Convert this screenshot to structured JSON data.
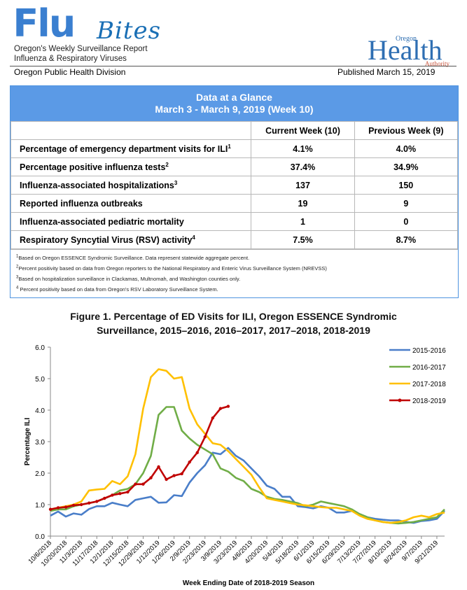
{
  "header": {
    "logo_flu": "Flu",
    "logo_bites": "Bites",
    "subtitle_line1": "Oregon's Weekly Surveillance Report",
    "subtitle_line2": "Influenza & Respiratory Viruses",
    "oha_oregon": "Oregon",
    "oha_health": "Health",
    "oha_authority": "Authority",
    "division": "Oregon Public Health Division",
    "published": "Published March 15, 2019"
  },
  "glance": {
    "title": "Data at a Glance",
    "subtitle": "March 3 - March 9, 2019 (Week 10)",
    "col_current": "Current Week (10)",
    "col_previous": "Previous Week (9)",
    "rows": [
      {
        "label": "Percentage of emergency department visits for ILI",
        "sup": "1",
        "current": "4.1%",
        "previous": "4.0%"
      },
      {
        "label": "Percentage positive influenza tests",
        "sup": "2",
        "current": "37.4%",
        "previous": "34.9%"
      },
      {
        "label": "Influenza-associated hospitalizations",
        "sup": "3",
        "current": "137",
        "previous": "150"
      },
      {
        "label": "Reported influenza outbreaks",
        "sup": "",
        "current": "19",
        "previous": "9"
      },
      {
        "label": "Influenza-associated pediatric mortality",
        "sup": "",
        "current": "1",
        "previous": "0"
      },
      {
        "label": "Respiratory Syncytial Virus (RSV) activity",
        "sup": "4",
        "current": "7.5%",
        "previous": "8.7%"
      }
    ],
    "notes": [
      {
        "sup": "1",
        "text": "Based on Oregon ESSENCE Syndromic Surveillance. Data represent statewide aggregate percent."
      },
      {
        "sup": "2",
        "text": "Percent positivity based on data from Oregon reporters to the National Respiratory and Enteric Virus Surveillance System (NREVSS)"
      },
      {
        "sup": "3",
        "text": "Based on hospitalization surveillance in Clackamas, Multnomah, and Washington counties only."
      },
      {
        "sup": "4",
        "text": " Percent positivity based on data from Oregon's RSV Laboratory Surveillance System."
      }
    ]
  },
  "chart_data": {
    "type": "line",
    "title_line1": "Figure 1. Percentage of ED Visits for ILI, Oregon ESSENCE Syndromic",
    "title_line2": "Surveillance, 2015–2016, 2016–2017, 2017–2018, 2018-2019",
    "xlabel": "Week Ending Date of 2018-2019 Season",
    "ylabel": "Percentage ILI",
    "ylim": [
      0,
      6
    ],
    "yticks": [
      "0.0",
      "1.0",
      "2.0",
      "3.0",
      "4.0",
      "5.0",
      "6.0"
    ],
    "weeks": 52,
    "xtick_labels": [
      "10/6/2018",
      "10/20/2018",
      "11/3/2018",
      "11/17/2018",
      "12/1/2018",
      "12/15/2018",
      "12/29/2018",
      "1/12/2019",
      "1/26/2019",
      "2/9/2019",
      "2/23/2019",
      "3/9/2019",
      "3/23/2019",
      "4/6/2019",
      "4/20/2019",
      "5/4/2019",
      "5/18/2019",
      "6/1/2019",
      "6/15/2019",
      "6/29/2019",
      "7/13/2019",
      "7/27/2019",
      "8/10/2019",
      "8/24/2019",
      "9/7/2019",
      "9/21/2019"
    ],
    "legend_position": "top-right",
    "series": [
      {
        "name": "2015-2016",
        "color": "#4a7ec9",
        "markers": false,
        "values": [
          0.65,
          0.78,
          0.62,
          0.72,
          0.68,
          0.86,
          0.95,
          0.95,
          1.06,
          1.0,
          0.95,
          1.15,
          1.2,
          1.25,
          1.06,
          1.07,
          1.3,
          1.27,
          1.7,
          2.0,
          2.25,
          2.65,
          2.6,
          2.8,
          2.55,
          2.4,
          2.15,
          1.9,
          1.6,
          1.5,
          1.25,
          1.25,
          0.95,
          0.92,
          0.88,
          0.95,
          0.9,
          0.75,
          0.75,
          0.8,
          0.7,
          0.6,
          0.55,
          0.52,
          0.5,
          0.5,
          0.45,
          0.42,
          0.48,
          0.5,
          0.55,
          0.8
        ]
      },
      {
        "name": "2016-2017",
        "color": "#70ad47",
        "markers": false,
        "values": [
          0.8,
          0.85,
          0.85,
          0.95,
          1.0,
          1.05,
          1.1,
          1.2,
          1.3,
          1.45,
          1.5,
          1.65,
          2.0,
          2.55,
          3.85,
          4.1,
          4.1,
          3.35,
          3.1,
          2.9,
          2.75,
          2.6,
          2.15,
          2.05,
          1.85,
          1.75,
          1.5,
          1.4,
          1.25,
          1.18,
          1.15,
          1.1,
          1.05,
          0.95,
          1.0,
          1.1,
          1.05,
          1.0,
          0.95,
          0.85,
          0.7,
          0.6,
          0.5,
          0.45,
          0.42,
          0.4,
          0.42,
          0.45,
          0.5,
          0.55,
          0.6,
          0.85
        ]
      },
      {
        "name": "2017-2018",
        "color": "#ffc000",
        "markers": false,
        "values": [
          0.85,
          0.9,
          0.95,
          1.0,
          1.1,
          1.45,
          1.48,
          1.5,
          1.75,
          1.65,
          1.9,
          2.6,
          4.05,
          5.05,
          5.3,
          5.25,
          5.0,
          5.05,
          4.05,
          3.55,
          3.25,
          2.95,
          2.9,
          2.7,
          2.45,
          2.2,
          1.95,
          1.55,
          1.2,
          1.15,
          1.1,
          1.05,
          1.0,
          0.98,
          0.95,
          0.92,
          0.9,
          0.9,
          0.85,
          0.8,
          0.65,
          0.55,
          0.5,
          0.45,
          0.42,
          0.45,
          0.5,
          0.6,
          0.65,
          0.6,
          0.7,
          0.75
        ]
      },
      {
        "name": "2018-2019",
        "color": "#c00000",
        "markers": true,
        "values": [
          0.85,
          0.9,
          0.92,
          0.98,
          1.0,
          1.05,
          1.1,
          1.2,
          1.3,
          1.35,
          1.4,
          1.65,
          1.65,
          1.85,
          2.2,
          1.8,
          1.92,
          1.98,
          2.35,
          2.65,
          3.15,
          3.75,
          4.05,
          4.12
        ]
      }
    ]
  }
}
